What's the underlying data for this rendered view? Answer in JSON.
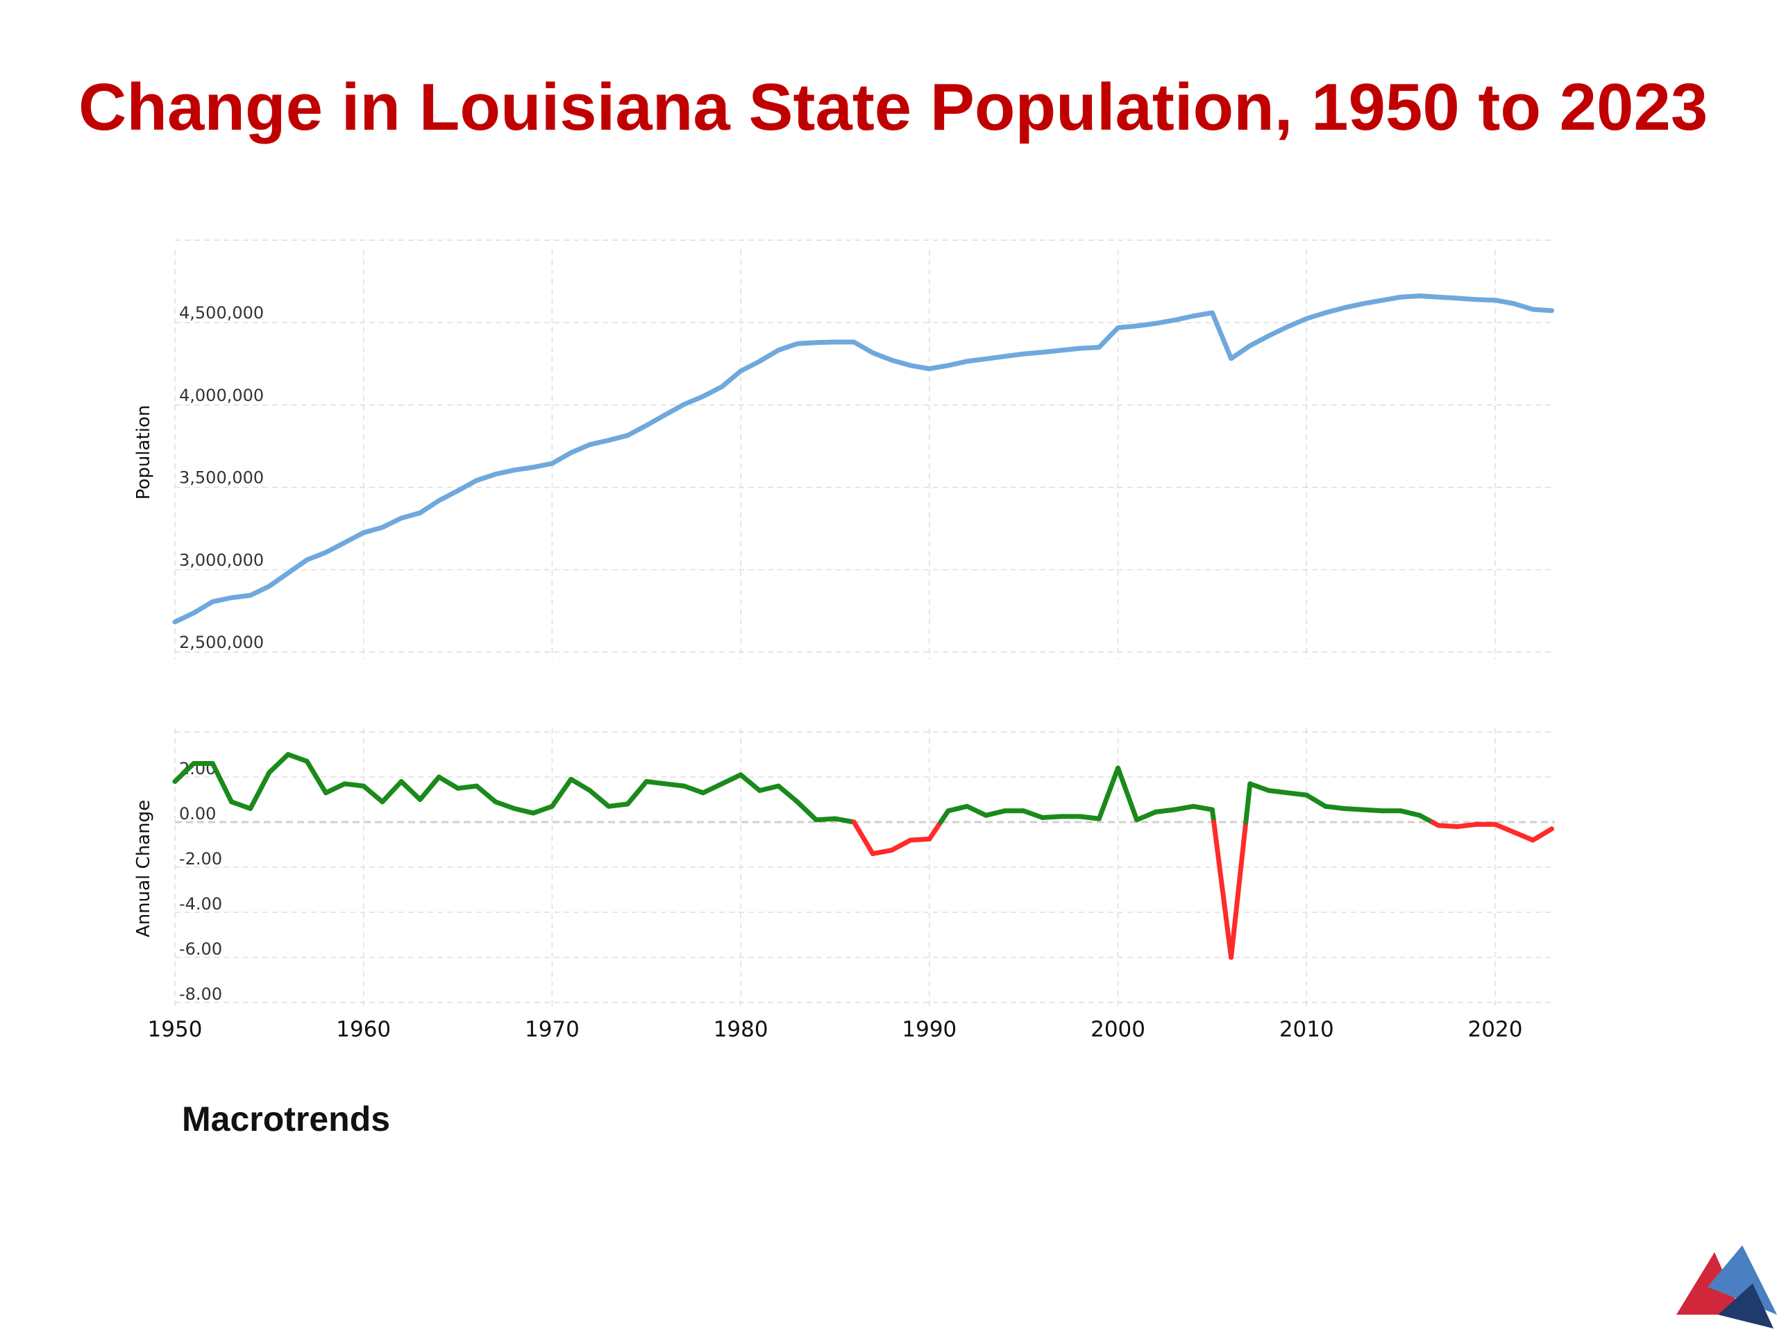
{
  "title": "Change in Louisiana State Population, 1950 to 2023",
  "source": "Macrotrends",
  "colors": {
    "title": "#c00000",
    "population_line": "#6fa8dc",
    "positive_change": "#1a8a1a",
    "negative_change": "#ff2a2a",
    "logo_red": "#d0283a",
    "logo_blue": "#4a7fc1",
    "logo_navy": "#1f3a6b"
  },
  "chart_data": [
    {
      "type": "line",
      "ylabel": "Population",
      "ylim": [
        2500000,
        5000000
      ],
      "yticks": [
        2500000,
        3000000,
        3500000,
        4000000,
        4500000
      ],
      "ytick_labels": [
        "2,500,000",
        "3,000,000",
        "3,500,000",
        "4,000,000",
        "4,500,000"
      ],
      "xlim": [
        1950,
        2024
      ],
      "x": [
        1950,
        1951,
        1952,
        1953,
        1954,
        1955,
        1956,
        1957,
        1958,
        1959,
        1960,
        1961,
        1962,
        1963,
        1964,
        1965,
        1966,
        1967,
        1968,
        1969,
        1970,
        1971,
        1972,
        1973,
        1974,
        1975,
        1976,
        1977,
        1978,
        1979,
        1980,
        1981,
        1982,
        1983,
        1984,
        1985,
        1986,
        1987,
        1988,
        1989,
        1990,
        1991,
        1992,
        1993,
        1994,
        1995,
        1996,
        1997,
        1998,
        1999,
        2000,
        2001,
        2002,
        2003,
        2004,
        2005,
        2006,
        2007,
        2008,
        2009,
        2010,
        2011,
        2012,
        2013,
        2014,
        2015,
        2016,
        2017,
        2018,
        2019,
        2020,
        2021,
        2022,
        2023
      ],
      "series": [
        {
          "values": [
            2683000,
            2738000,
            2806000,
            2830000,
            2845000,
            2900000,
            2980000,
            3060000,
            3105000,
            3165000,
            3225000,
            3257000,
            3313000,
            3345000,
            3420000,
            3480000,
            3542000,
            3580000,
            3605000,
            3622000,
            3645000,
            3710000,
            3760000,
            3786000,
            3815000,
            3876000,
            3941000,
            4004000,
            4052000,
            4111000,
            4206000,
            4265000,
            4333000,
            4372000,
            4379000,
            4382000,
            4382000,
            4317000,
            4272000,
            4240000,
            4220000,
            4240000,
            4265000,
            4280000,
            4295000,
            4310000,
            4320000,
            4332000,
            4344000,
            4350000,
            4469000,
            4480000,
            4495000,
            4515000,
            4540000,
            4560000,
            4282000,
            4360000,
            4420000,
            4475000,
            4524000,
            4560000,
            4590000,
            4615000,
            4635000,
            4655000,
            4662000,
            4655000,
            4648000,
            4640000,
            4636000,
            4615000,
            4580000,
            4573000
          ]
        }
      ]
    },
    {
      "type": "line",
      "ylabel": "Annual Change",
      "ylim": [
        -8,
        4
      ],
      "yticks": [
        2,
        0,
        -2,
        -4,
        -6,
        -8
      ],
      "ytick_labels": [
        "2.00",
        "0.00",
        "-2.00",
        "-4.00",
        "-6.00",
        "-8.00"
      ],
      "xlim": [
        1950,
        2024
      ],
      "xticks": [
        1950,
        1960,
        1970,
        1980,
        1990,
        2000,
        2010,
        2020
      ],
      "xtick_labels": [
        "1950",
        "1960",
        "1970",
        "1980",
        "1990",
        "2000",
        "2010",
        "2020"
      ],
      "x": [
        1950,
        1951,
        1952,
        1953,
        1954,
        1955,
        1956,
        1957,
        1958,
        1959,
        1960,
        1961,
        1962,
        1963,
        1964,
        1965,
        1966,
        1967,
        1968,
        1969,
        1970,
        1971,
        1972,
        1973,
        1974,
        1975,
        1976,
        1977,
        1978,
        1979,
        1980,
        1981,
        1982,
        1983,
        1984,
        1985,
        1986,
        1987,
        1988,
        1989,
        1990,
        1991,
        1992,
        1993,
        1994,
        1995,
        1996,
        1997,
        1998,
        1999,
        2000,
        2001,
        2002,
        2003,
        2004,
        2005,
        2006,
        2007,
        2008,
        2009,
        2010,
        2011,
        2012,
        2013,
        2014,
        2015,
        2016,
        2017,
        2018,
        2019,
        2020,
        2021,
        2022,
        2023
      ],
      "series": [
        {
          "values": [
            1.8,
            2.6,
            2.6,
            0.9,
            0.6,
            2.2,
            3.0,
            2.7,
            1.3,
            1.7,
            1.6,
            0.9,
            1.8,
            1.0,
            2.0,
            1.5,
            1.6,
            0.9,
            0.6,
            0.4,
            0.7,
            1.9,
            1.4,
            0.7,
            0.8,
            1.8,
            1.7,
            1.6,
            1.3,
            1.7,
            2.1,
            1.4,
            1.6,
            0.9,
            0.1,
            0.15,
            0.0,
            -1.4,
            -1.25,
            -0.8,
            -0.75,
            0.5,
            0.7,
            0.3,
            0.5,
            0.5,
            0.2,
            0.25,
            0.25,
            0.15,
            2.4,
            0.1,
            0.45,
            0.55,
            0.7,
            0.55,
            -6.0,
            1.7,
            1.4,
            1.3,
            1.2,
            0.7,
            0.6,
            0.55,
            0.5,
            0.5,
            0.3,
            -0.15,
            -0.2,
            -0.1,
            -0.1,
            -0.45,
            -0.8,
            -0.3
          ]
        }
      ]
    }
  ]
}
